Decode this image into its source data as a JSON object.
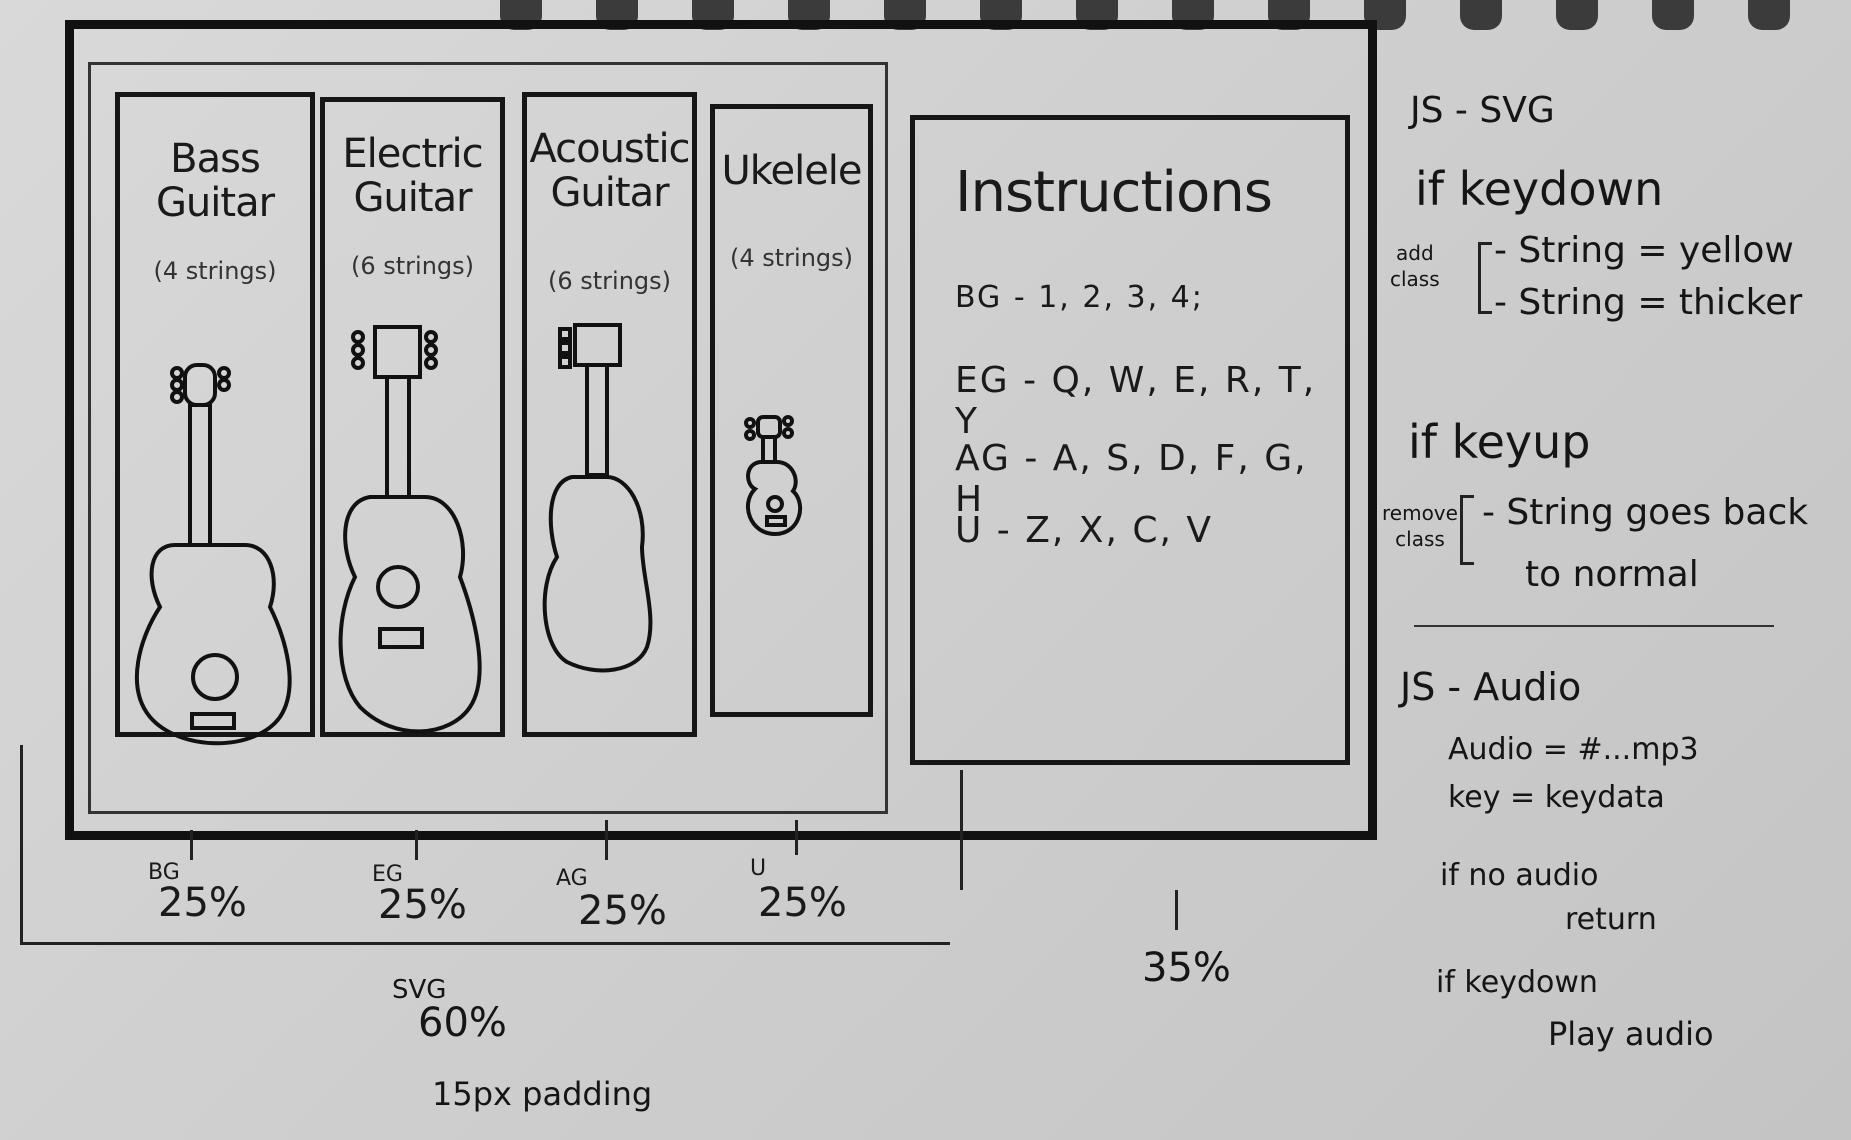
{
  "panels": [
    {
      "title": "Bass\nGuitar",
      "subtitle": "(4 strings)",
      "abbr": "BG",
      "width_label": "25%"
    },
    {
      "title": "Electric\nGuitar",
      "subtitle": "(6 strings)",
      "abbr": "EG",
      "width_label": "25%"
    },
    {
      "title": "Acoustic\nGuitar",
      "subtitle": "(6 strings)",
      "abbr": "AG",
      "width_label": "25%"
    },
    {
      "title": "Ukelele",
      "subtitle": "(4 strings)",
      "abbr": "U",
      "width_label": "25%"
    }
  ],
  "instructions": {
    "title": "Instructions",
    "lines": [
      "BG - 1, 2, 3, 4;",
      "EG - Q, W, E, R, T, Y",
      "AG - A, S, D, F, G, H",
      "U - Z, X, C, V"
    ]
  },
  "dimensions": {
    "svg_label": "SVG",
    "svg_width": "60%",
    "padding": "15px padding",
    "instructions_width": "35%"
  },
  "notes": {
    "svg_heading": "JS - SVG",
    "keydown": "if keydown",
    "add_class": "add\nclass",
    "keydown_items": [
      "- String = yellow",
      "- String = thicker"
    ],
    "keyup": "if keyup",
    "remove_class": "remove\nclass",
    "keyup_items": [
      "- String goes back",
      "to normal"
    ],
    "audio_heading": "JS - Audio",
    "audio_lines": [
      "Audio = #...mp3",
      "key = keydata"
    ],
    "no_audio": [
      "if no audio",
      "return"
    ],
    "play": [
      "if keydown",
      "Play audio"
    ]
  }
}
